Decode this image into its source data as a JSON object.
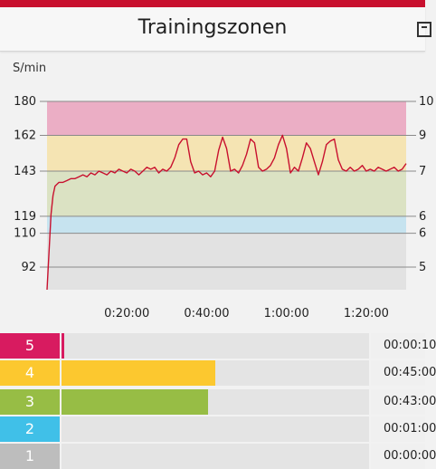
{
  "header": {
    "title": "Trainingszonen"
  },
  "chart_data": {
    "type": "line",
    "ylabel": "S/min",
    "ylim": [
      80,
      180
    ],
    "y_ticks": [
      "180",
      "162",
      "143",
      "119",
      "110",
      "92"
    ],
    "y_tick_values": [
      180,
      162,
      143,
      119,
      110,
      92
    ],
    "right_ticks": [
      "10",
      "9",
      "7",
      "6",
      "6",
      "5"
    ],
    "x_ticks": [
      "0:20:00",
      "0:40:00",
      "1:00:00",
      "1:20:00"
    ],
    "x_tick_values": [
      20,
      40,
      60,
      80
    ],
    "xlim": [
      0,
      90
    ],
    "zone_bands": [
      {
        "from": 162,
        "to": 180,
        "color": "#ebaec5"
      },
      {
        "from": 143,
        "to": 162,
        "color": "#f5e4b3"
      },
      {
        "from": 119,
        "to": 143,
        "color": "#dbe2c3"
      },
      {
        "from": 110,
        "to": 119,
        "color": "#c6e3ef"
      },
      {
        "from": 80,
        "to": 110,
        "color": "#e2e2e2"
      }
    ],
    "line_color": "#c8102e",
    "series": [
      {
        "x": [
          0,
          0.5,
          1,
          1.5,
          2,
          3,
          4,
          5,
          6,
          7,
          8,
          9,
          10,
          11,
          12,
          13,
          14,
          15,
          16,
          17,
          18,
          19,
          20,
          21,
          22,
          23,
          24,
          25,
          26,
          27,
          28,
          29,
          30,
          31,
          32,
          33,
          34,
          35,
          36,
          37,
          38,
          39,
          40,
          41,
          42,
          43,
          44,
          45,
          46,
          47,
          48,
          49,
          50,
          51,
          52,
          53,
          54,
          55,
          56,
          57,
          58,
          59,
          60,
          61,
          62,
          63,
          64,
          65,
          66,
          67,
          68,
          69,
          70,
          71,
          72,
          73,
          74,
          75,
          76,
          77,
          78,
          79,
          80,
          81,
          82,
          83,
          84,
          85,
          86,
          87,
          88,
          89,
          90
        ],
        "y": [
          80,
          100,
          120,
          130,
          135,
          137,
          137,
          138,
          139,
          139,
          140,
          141,
          140,
          142,
          141,
          143,
          142,
          141,
          143,
          142,
          144,
          143,
          142,
          144,
          143,
          141,
          143,
          145,
          144,
          145,
          142,
          144,
          143,
          145,
          150,
          157,
          160,
          160,
          148,
          142,
          143,
          141,
          142,
          140,
          143,
          154,
          161,
          155,
          143,
          144,
          142,
          146,
          152,
          160,
          158,
          145,
          143,
          144,
          146,
          150,
          157,
          162,
          155,
          142,
          145,
          143,
          150,
          158,
          155,
          148,
          141,
          148,
          157,
          159,
          160,
          149,
          144,
          143,
          145,
          143,
          144,
          146,
          143,
          144,
          143,
          145,
          144,
          143,
          144,
          145,
          143,
          144,
          147
        ]
      }
    ]
  },
  "zones": [
    {
      "label": "5",
      "time": "00:00:10",
      "fraction": 0.01,
      "color": "#d81b60"
    },
    {
      "label": "4",
      "time": "00:45:00",
      "fraction": 0.5,
      "color": "#fcc82f"
    },
    {
      "label": "3",
      "time": "00:43:00",
      "fraction": 0.475,
      "color": "#97bd45"
    },
    {
      "label": "2",
      "time": "00:01:00",
      "fraction": 0.0,
      "color": "#40c0e8"
    },
    {
      "label": "1",
      "time": "00:00:00",
      "fraction": 0.0,
      "color": "#bdbdbd"
    }
  ]
}
